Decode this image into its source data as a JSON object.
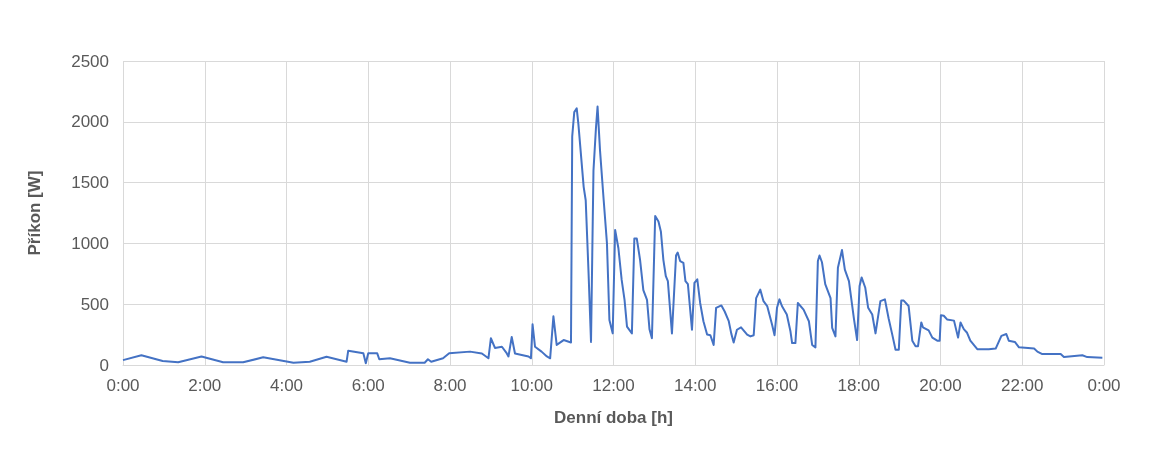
{
  "chart_data": {
    "type": "line",
    "xlabel": "Denní doba [h]",
    "ylabel": "Příkon [W]",
    "color": "#4472c4",
    "grid": true,
    "marker": "none",
    "line_style": "solid",
    "xlim": [
      0,
      24
    ],
    "ylim": [
      0,
      2500
    ],
    "xticks": [
      {
        "value": 0,
        "label": "0:00"
      },
      {
        "value": 2,
        "label": "2:00"
      },
      {
        "value": 4,
        "label": "4:00"
      },
      {
        "value": 6,
        "label": "6:00"
      },
      {
        "value": 8,
        "label": "8:00"
      },
      {
        "value": 10,
        "label": "10:00"
      },
      {
        "value": 12,
        "label": "12:00"
      },
      {
        "value": 14,
        "label": "14:00"
      },
      {
        "value": 16,
        "label": "16:00"
      },
      {
        "value": 18,
        "label": "18:00"
      },
      {
        "value": 20,
        "label": "20:00"
      },
      {
        "value": 22,
        "label": "22:00"
      },
      {
        "value": 24,
        "label": "0:00"
      }
    ],
    "yticks": [
      0,
      500,
      1000,
      1500,
      2000,
      2500
    ],
    "x": [
      0,
      0.45,
      0.97,
      1.35,
      1.92,
      2.45,
      2.94,
      3.43,
      4.17,
      4.57,
      4.98,
      5.47,
      5.51,
      5.88,
      5.94,
      6.0,
      6.22,
      6.27,
      6.53,
      7.02,
      7.38,
      7.46,
      7.54,
      7.83,
      7.98,
      8.49,
      8.78,
      8.94,
      9.0,
      9.1,
      9.27,
      9.39,
      9.43,
      9.51,
      9.59,
      9.92,
      9.98,
      10.02,
      10.08,
      10.24,
      10.37,
      10.45,
      10.53,
      10.61,
      10.78,
      10.96,
      10.99,
      11.04,
      11.1,
      11.14,
      11.27,
      11.32,
      11.39,
      11.45,
      11.51,
      11.57,
      11.61,
      11.67,
      11.76,
      11.84,
      11.9,
      11.98,
      12.04,
      12.12,
      12.2,
      12.27,
      12.33,
      12.45,
      12.51,
      12.57,
      12.65,
      12.73,
      12.82,
      12.88,
      12.94,
      13.02,
      13.1,
      13.16,
      13.22,
      13.28,
      13.33,
      13.43,
      13.53,
      13.57,
      13.63,
      13.71,
      13.76,
      13.82,
      13.92,
      13.98,
      14.05,
      14.12,
      14.2,
      14.29,
      14.37,
      14.45,
      14.51,
      14.64,
      14.72,
      14.82,
      14.88,
      14.94,
      15.02,
      15.12,
      15.27,
      15.35,
      15.43,
      15.49,
      15.59,
      15.67,
      15.76,
      15.88,
      15.94,
      16.0,
      16.06,
      16.12,
      16.24,
      16.33,
      16.37,
      16.45,
      16.51,
      16.65,
      16.78,
      16.86,
      16.94,
      17.0,
      17.04,
      17.1,
      17.18,
      17.31,
      17.35,
      17.43,
      17.49,
      17.59,
      17.66,
      17.76,
      17.88,
      17.96,
      18.02,
      18.07,
      18.16,
      18.23,
      18.33,
      18.41,
      18.53,
      18.64,
      18.73,
      18.82,
      18.9,
      18.98,
      19.04,
      19.1,
      19.22,
      19.31,
      19.39,
      19.45,
      19.53,
      19.57,
      19.71,
      19.8,
      19.92,
      19.98,
      20.01,
      20.08,
      20.16,
      20.33,
      20.43,
      20.49,
      20.57,
      20.65,
      20.73,
      20.9,
      21.18,
      21.35,
      21.49,
      21.61,
      21.67,
      21.82,
      21.92,
      22.29,
      22.37,
      22.49,
      22.94,
      23.02,
      23.47,
      23.59,
      23.96
    ],
    "values": [
      40,
      80,
      33,
      22,
      70,
      22,
      22,
      63,
      19,
      27,
      68,
      27,
      118,
      96,
      14,
      96,
      96,
      47,
      55,
      19,
      19,
      47,
      27,
      55,
      96,
      110,
      95,
      55,
      220,
      140,
      150,
      95,
      70,
      230,
      95,
      70,
      55,
      335,
      150,
      110,
      70,
      55,
      400,
      165,
      205,
      185,
      1880,
      2080,
      2110,
      1985,
      1465,
      1355,
      755,
      190,
      1600,
      1945,
      2125,
      1765,
      1355,
      1000,
      370,
      260,
      1110,
      960,
      700,
      535,
      315,
      260,
      1040,
      1040,
      865,
      615,
      535,
      295,
      220,
      1225,
      1180,
      1095,
      865,
      730,
      690,
      260,
      900,
      925,
      855,
      840,
      690,
      665,
      290,
      675,
      705,
      510,
      360,
      250,
      245,
      165,
      470,
      490,
      440,
      360,
      260,
      185,
      290,
      310,
      250,
      235,
      245,
      550,
      620,
      525,
      485,
      330,
      245,
      470,
      540,
      485,
      415,
      275,
      180,
      180,
      510,
      455,
      360,
      165,
      145,
      855,
      900,
      845,
      665,
      550,
      305,
      235,
      800,
      945,
      785,
      690,
      385,
      205,
      650,
      720,
      635,
      470,
      415,
      260,
      525,
      540,
      385,
      250,
      125,
      125,
      530,
      530,
      485,
      200,
      155,
      155,
      350,
      310,
      285,
      225,
      200,
      200,
      410,
      405,
      375,
      365,
      225,
      350,
      295,
      265,
      200,
      130,
      130,
      135,
      240,
      255,
      200,
      190,
      145,
      135,
      110,
      90,
      90,
      65,
      80,
      65,
      60
    ]
  }
}
